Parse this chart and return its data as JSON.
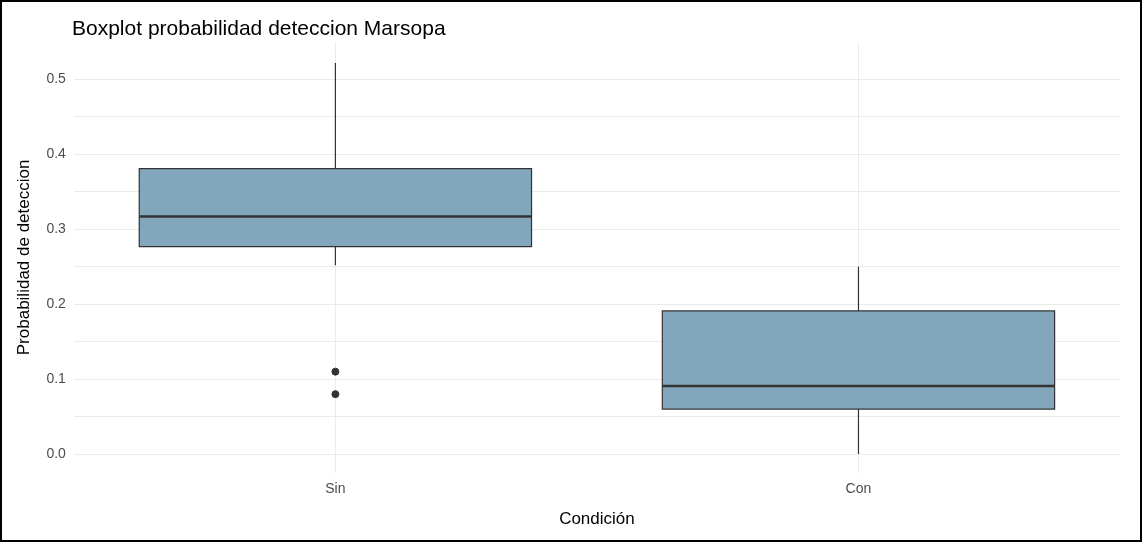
{
  "chart_data": {
    "type": "box",
    "title": "Boxplot probabilidad deteccion Marsopa",
    "xlabel": "Condición",
    "ylabel": "Probabilidad de deteccion",
    "categories": [
      "Sin",
      "Con"
    ],
    "boxes": [
      {
        "low": 0.252,
        "q1": 0.277,
        "median": 0.317,
        "q3": 0.381,
        "high": 0.522,
        "outliers": [
          0.11,
          0.08
        ]
      },
      {
        "low": 0,
        "q1": 0.06,
        "median": 0.091,
        "q3": 0.191,
        "high": 0.25
      }
    ],
    "color": "#82a6bb",
    "ylim": [
      -0.025,
      0.55
    ],
    "yticks": [
      {
        "value": 0,
        "label": "0.0"
      },
      {
        "value": 0.05,
        "label": null
      },
      {
        "value": 0.1,
        "label": "0.1"
      },
      {
        "value": 0.15,
        "label": null
      },
      {
        "value": 0.2,
        "label": "0.2"
      },
      {
        "value": 0.25,
        "label": null
      },
      {
        "value": 0.3,
        "label": "0.3"
      },
      {
        "value": 0.35,
        "label": null
      },
      {
        "value": 0.4,
        "label": "0.4"
      },
      {
        "value": 0.45,
        "label": null
      },
      {
        "value": 0.5,
        "label": "0.5"
      }
    ],
    "grid": true
  }
}
